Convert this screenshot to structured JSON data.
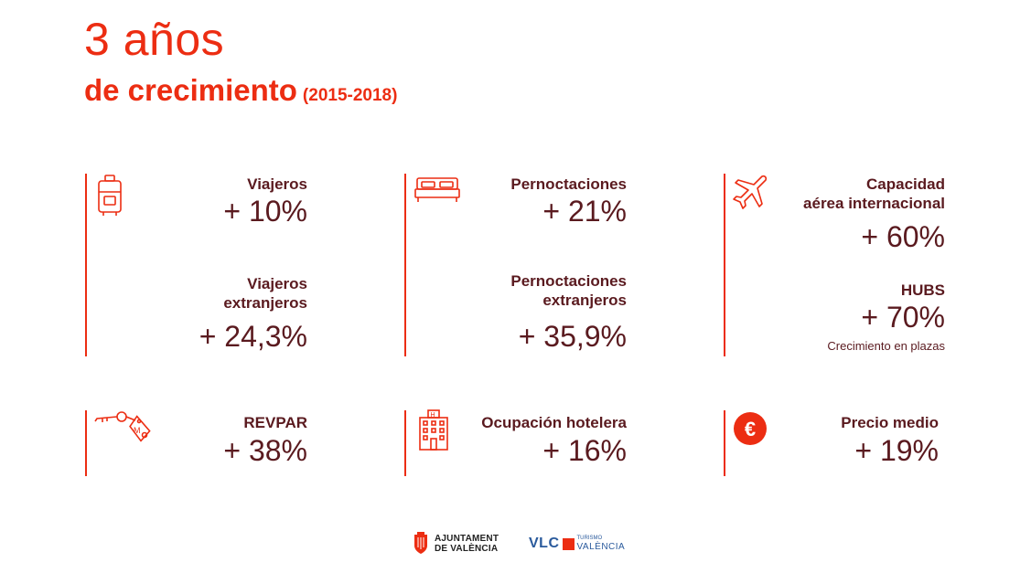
{
  "header": {
    "title": "3 años",
    "subtitle": "de crecimiento",
    "years": "(2015-2018)"
  },
  "stats": {
    "viajeros": {
      "label": "Viajeros",
      "value": "+ 10%"
    },
    "viajeros_ext": {
      "label_1": "Viajeros",
      "label_2": "extranjeros",
      "value": "+ 24,3%"
    },
    "pernoctaciones": {
      "label": "Pernoctaciones",
      "value": "+ 21%"
    },
    "pernoctaciones_ext": {
      "label_1": "Pernoctaciones",
      "label_2": "extranjeros",
      "value": "+ 35,9%"
    },
    "capacidad": {
      "label_1": "Capacidad",
      "label_2": "aérea internacional",
      "value": "+ 60%"
    },
    "hubs": {
      "label": "HUBS",
      "value": "+ 70%",
      "note": "Crecimiento en plazas"
    },
    "revpar": {
      "label": "REVPAR",
      "value": "+ 38%"
    },
    "ocupacion": {
      "label": "Ocupación hotelera",
      "value": "+ 16%"
    },
    "precio": {
      "label": "Precio medio",
      "value": "+ 19%"
    }
  },
  "icons": {
    "suitcase": "suitcase-icon",
    "bed": "bed-icon",
    "plane": "airplane-icon",
    "key": "key-tag-icon",
    "hotel": "hotel-building-icon",
    "euro": "euro-icon"
  },
  "footer": {
    "ajuntament_line1": "AJUNTAMENT",
    "ajuntament_line2": "DE VALÈNCIA",
    "vlc": "VLC",
    "turismo": "TURISMO",
    "valencia": "VALÈNCIA"
  },
  "colors": {
    "accent": "#ec2d12",
    "text": "#5a1a1f",
    "vlc_blue": "#2a5a9c"
  }
}
